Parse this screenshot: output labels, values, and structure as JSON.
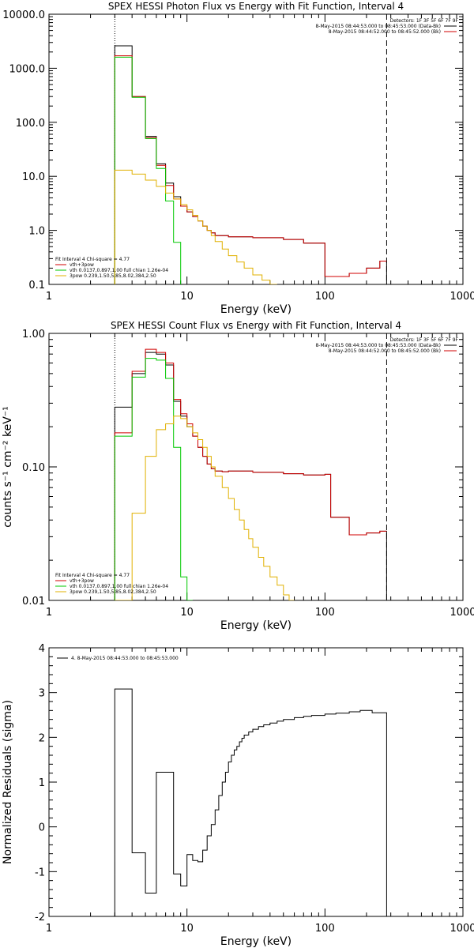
{
  "chart_data": [
    {
      "type": "line",
      "title": "SPEX HESSI Photon Flux vs Energy with Fit Function, Interval 4",
      "xlabel": "Energy (keV)",
      "ylabel": "",
      "xscale": "log",
      "yscale": "log",
      "xlim": [
        1,
        1000
      ],
      "ylim": [
        0.1,
        10000
      ],
      "xticks": [
        "1",
        "10",
        "100",
        "1000"
      ],
      "yticks": [
        "0.1",
        "1.0",
        "10.0",
        "100.0",
        "1000.0",
        "10000.0"
      ],
      "vlines": {
        "dotted": 3,
        "dashed": 280
      },
      "legend_right": {
        "header": "Detectors: 1F 3F 5F 6F 7F 9F",
        "entries": [
          {
            "text": "8-May-2015 08:44:53.000 to 08:45:53.000 (Data-Bk)",
            "color": "#000000"
          },
          {
            "text": "8-May-2015 08:44:52.000 to 08:45:52.000 (Bk)",
            "color": "#d00000"
          }
        ]
      },
      "legend_left": {
        "header": "Fit Interval 4    Chi-square = 4.77",
        "entries": [
          {
            "text": "vth+3pow",
            "color": "#d00000"
          },
          {
            "text": "vth 0.0137,0.897,1.00  full chian 1.26e-04",
            "color": "#00c800"
          },
          {
            "text": "3pow 0.239,1.50,5.85,8.02,384,2.50",
            "color": "#e0b000"
          }
        ]
      },
      "series": [
        {
          "color": "#000000",
          "edges": [
            3,
            4,
            5,
            6,
            7,
            8,
            9,
            10,
            11,
            12,
            13,
            14,
            15,
            16,
            20,
            30,
            50,
            70,
            100,
            110,
            150,
            200,
            250,
            280
          ],
          "values": [
            2600,
            300,
            55,
            17,
            7.5,
            4.2,
            2.8,
            2.2,
            1.8,
            1.5,
            1.2,
            1.0,
            0.9,
            0.8,
            0.76,
            0.73,
            0.68,
            0.58,
            0.14,
            0.14,
            0.16,
            0.2,
            0.27
          ]
        },
        {
          "color": "#d00000",
          "edges": [
            3,
            4,
            5,
            6,
            7,
            8,
            9,
            10,
            11,
            12,
            13,
            14,
            15,
            16,
            20,
            30,
            50,
            70,
            100,
            110,
            150,
            200,
            250,
            280
          ],
          "values": [
            1700,
            300,
            52,
            16,
            6.8,
            3.8,
            2.8,
            2.2,
            1.8,
            1.5,
            1.2,
            1.0,
            0.9,
            0.8,
            0.76,
            0.73,
            0.68,
            0.58,
            0.14,
            0.14,
            0.16,
            0.2,
            0.27
          ]
        },
        {
          "color": "#00c800",
          "edges": [
            3,
            4,
            5,
            6,
            7,
            8,
            9
          ],
          "values": [
            1600,
            290,
            50,
            14,
            3.5,
            0.6,
            0.08
          ]
        },
        {
          "color": "#e0b000",
          "edges": [
            3,
            4,
            5,
            6,
            7,
            8,
            9,
            10,
            11,
            12,
            13,
            14,
            15,
            16,
            18,
            20,
            23,
            26,
            30,
            35,
            40,
            45
          ],
          "values": [
            13,
            11,
            8.5,
            6.5,
            4.9,
            3.8,
            3.0,
            2.4,
            1.9,
            1.5,
            1.2,
            1.0,
            0.8,
            0.62,
            0.45,
            0.34,
            0.26,
            0.2,
            0.15,
            0.12,
            0.1
          ]
        }
      ]
    },
    {
      "type": "line",
      "title": "SPEX HESSI Count Flux vs Energy with Fit Function, Interval 4",
      "xlabel": "Energy (keV)",
      "ylabel": "counts s⁻¹ cm⁻² keV⁻¹",
      "xscale": "log",
      "yscale": "log",
      "xlim": [
        1,
        1000
      ],
      "ylim": [
        0.01,
        1
      ],
      "xticks": [
        "1",
        "10",
        "100",
        "1000"
      ],
      "yticks": [
        "0.01",
        "0.10",
        "1.00"
      ],
      "vlines": {
        "dotted": 3,
        "dashed": 280
      },
      "legend_right": {
        "header": "Detectors: 1F 3F 5F 6F 7F 9F",
        "entries": [
          {
            "text": "8-May-2015 08:44:53.000 to 08:45:53.000 (Data-Bk)",
            "color": "#000000"
          },
          {
            "text": "8-May-2015 08:44:52.000 to 08:45:52.000 (Bk)",
            "color": "#d00000"
          }
        ]
      },
      "legend_left": {
        "header": "Fit Interval 4    Chi-square = 4.77",
        "entries": [
          {
            "text": "vth+3pow",
            "color": "#d00000"
          },
          {
            "text": "vth 0.0137,0.897,1.00  full chian 1.26e-04",
            "color": "#00c800"
          },
          {
            "text": "3pow 0.239,1.50,5.85,8.02,384,2.50",
            "color": "#e0b000"
          }
        ]
      },
      "series": [
        {
          "color": "#000000",
          "edges": [
            3,
            4,
            5,
            6,
            7,
            8,
            9,
            10,
            11,
            12,
            13,
            14,
            15,
            16,
            18,
            20,
            30,
            50,
            70,
            100,
            110,
            150,
            200,
            250,
            280
          ],
          "values": [
            0.28,
            0.5,
            0.72,
            0.7,
            0.58,
            0.31,
            0.24,
            0.2,
            0.17,
            0.14,
            0.12,
            0.105,
            0.097,
            0.093,
            0.092,
            0.093,
            0.091,
            0.089,
            0.087,
            0.088,
            0.042,
            0.031,
            0.032,
            0.033
          ]
        },
        {
          "color": "#d00000",
          "edges": [
            3,
            4,
            5,
            6,
            7,
            8,
            9,
            10,
            11,
            12,
            13,
            14,
            15,
            16,
            18,
            20,
            30,
            50,
            70,
            100,
            110,
            150,
            200,
            250,
            280
          ],
          "values": [
            0.18,
            0.52,
            0.76,
            0.72,
            0.6,
            0.32,
            0.25,
            0.21,
            0.17,
            0.14,
            0.12,
            0.105,
            0.097,
            0.093,
            0.092,
            0.093,
            0.091,
            0.089,
            0.087,
            0.088,
            0.042,
            0.031,
            0.032,
            0.033
          ]
        },
        {
          "color": "#00c800",
          "edges": [
            3,
            4,
            5,
            6,
            7,
            8,
            9,
            10,
            11
          ],
          "values": [
            0.17,
            0.47,
            0.65,
            0.63,
            0.46,
            0.14,
            0.015,
            0.005
          ]
        },
        {
          "color": "#e0b000",
          "edges": [
            3,
            4,
            5,
            6,
            7,
            8,
            9,
            10,
            11,
            12,
            13,
            14,
            15,
            16,
            18,
            20,
            22,
            24,
            26,
            28,
            30,
            33,
            36,
            40,
            45,
            50,
            55,
            60
          ],
          "values": [
            0.005,
            0.045,
            0.12,
            0.19,
            0.21,
            0.24,
            0.23,
            0.2,
            0.18,
            0.16,
            0.14,
            0.12,
            0.1,
            0.085,
            0.07,
            0.058,
            0.048,
            0.04,
            0.034,
            0.029,
            0.025,
            0.021,
            0.018,
            0.015,
            0.013,
            0.011,
            0.009
          ]
        }
      ]
    },
    {
      "type": "line",
      "title": "",
      "xlabel": "Energy (keV)",
      "ylabel": "Normalized Residuals (sigma)",
      "xscale": "log",
      "yscale": "linear",
      "xlim": [
        1,
        1000
      ],
      "ylim": [
        -2,
        4
      ],
      "xticks": [
        "1",
        "10",
        "100",
        "1000"
      ],
      "yticks": [
        "-2",
        "-1",
        "0",
        "1",
        "2",
        "3",
        "4"
      ],
      "legend": "4.  8-May-2015 08:44:53.000 to 08:45:53.000",
      "series": [
        {
          "color": "#000000",
          "edges": [
            3,
            4,
            5,
            6,
            7,
            8,
            9,
            10,
            11,
            12,
            13,
            14,
            15,
            16,
            17,
            18,
            19,
            20,
            21,
            22,
            23,
            24,
            25,
            26,
            28,
            30,
            33,
            36,
            40,
            45,
            50,
            60,
            70,
            80,
            100,
            120,
            150,
            180,
            220,
            280
          ],
          "values": [
            3.08,
            -0.58,
            -1.48,
            1.22,
            1.22,
            -1.05,
            -1.32,
            -0.62,
            -0.75,
            -0.78,
            -0.52,
            -0.2,
            0.05,
            0.38,
            0.7,
            1.0,
            1.22,
            1.45,
            1.6,
            1.72,
            1.8,
            1.9,
            1.98,
            2.05,
            2.12,
            2.18,
            2.24,
            2.28,
            2.32,
            2.36,
            2.4,
            2.44,
            2.47,
            2.49,
            2.52,
            2.54,
            2.57,
            2.6,
            2.55
          ]
        }
      ]
    }
  ]
}
